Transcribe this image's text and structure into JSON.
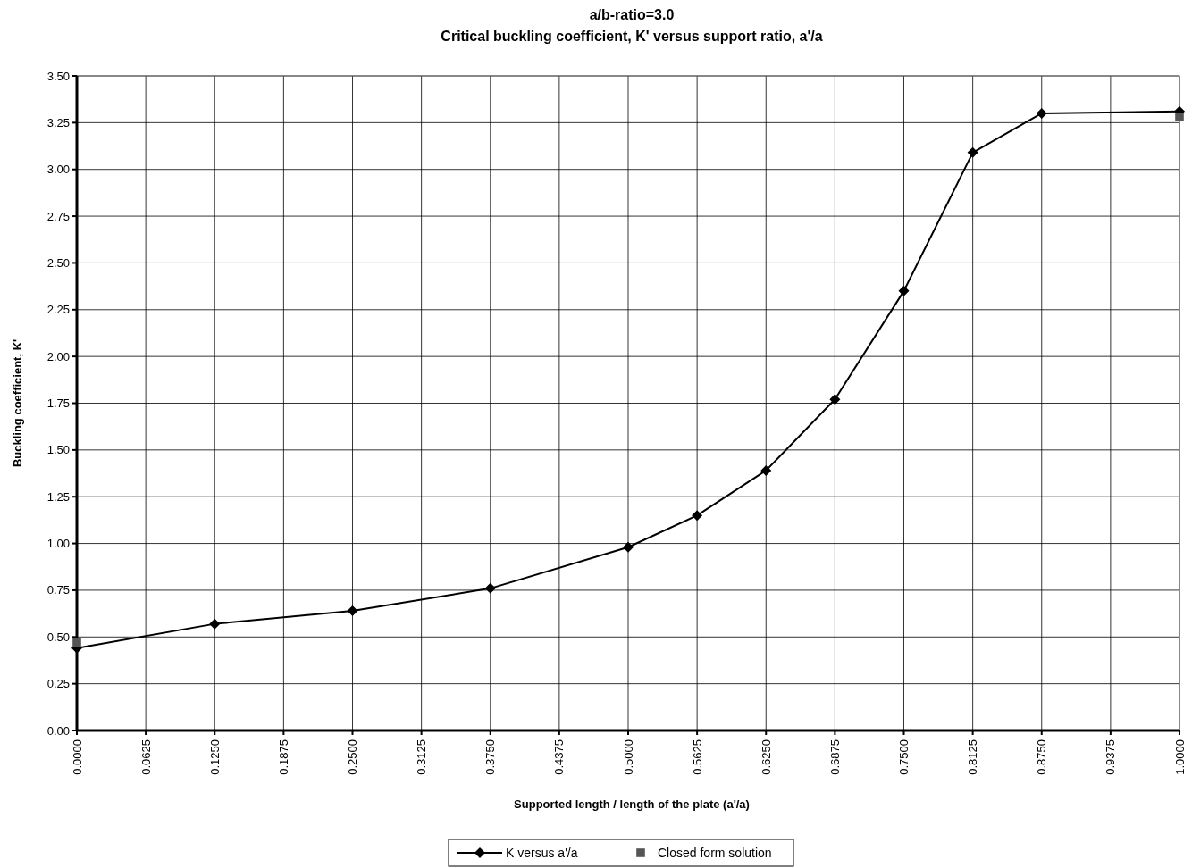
{
  "chart_data": {
    "type": "line",
    "title": "a/b-ratio=3.0",
    "subtitle": "Critical buckling coefficient, K' versus support ratio, a'/a",
    "xlabel": "Supported length / length of the plate (a'/a)",
    "ylabel": "Buckling coefficient, K'",
    "xlim": [
      0,
      1
    ],
    "ylim": [
      0,
      3.5
    ],
    "xticks": [
      {
        "value": 0,
        "label": "0.0000"
      },
      {
        "value": 0.0625,
        "label": "0.0625"
      },
      {
        "value": 0.125,
        "label": "0.1250"
      },
      {
        "value": 0.1875,
        "label": "0.1875"
      },
      {
        "value": 0.25,
        "label": "0.2500"
      },
      {
        "value": 0.3125,
        "label": "0.3125"
      },
      {
        "value": 0.375,
        "label": "0.3750"
      },
      {
        "value": 0.4375,
        "label": "0.4375"
      },
      {
        "value": 0.5,
        "label": "0.5000"
      },
      {
        "value": 0.5625,
        "label": "0.5625"
      },
      {
        "value": 0.625,
        "label": "0.6250"
      },
      {
        "value": 0.6875,
        "label": "0.6875"
      },
      {
        "value": 0.75,
        "label": "0.7500"
      },
      {
        "value": 0.8125,
        "label": "0.8125"
      },
      {
        "value": 0.875,
        "label": "0.8750"
      },
      {
        "value": 0.9375,
        "label": "0.9375"
      },
      {
        "value": 1,
        "label": "1.0000"
      }
    ],
    "yticks": [
      {
        "value": 0,
        "label": "0.00"
      },
      {
        "value": 0.25,
        "label": "0.25"
      },
      {
        "value": 0.5,
        "label": "0.50"
      },
      {
        "value": 0.75,
        "label": "0.75"
      },
      {
        "value": 1,
        "label": "1.00"
      },
      {
        "value": 1.25,
        "label": "1.25"
      },
      {
        "value": 1.5,
        "label": "1.50"
      },
      {
        "value": 1.75,
        "label": "1.75"
      },
      {
        "value": 2,
        "label": "2.00"
      },
      {
        "value": 2.25,
        "label": "2.25"
      },
      {
        "value": 2.5,
        "label": "2.50"
      },
      {
        "value": 2.75,
        "label": "2.75"
      },
      {
        "value": 3,
        "label": "3.00"
      },
      {
        "value": 3.25,
        "label": "3.25"
      },
      {
        "value": 3.5,
        "label": "3.50"
      }
    ],
    "grid": true,
    "legend": "bottom",
    "series": [
      {
        "name": "K versus a'/a",
        "color": "#000000",
        "marker": "diamond",
        "x": [
          0,
          0.125,
          0.25,
          0.375,
          0.5,
          0.5625,
          0.625,
          0.6875,
          0.75,
          0.8125,
          0.875,
          1
        ],
        "values": [
          0.44,
          0.57,
          0.64,
          0.76,
          0.98,
          1.15,
          1.39,
          1.77,
          2.35,
          3.09,
          3.3,
          3.31
        ]
      },
      {
        "name": "Closed form solution",
        "type": "scatter",
        "color": "#555555",
        "marker": "square",
        "x": [
          0,
          1
        ],
        "values": [
          0.47,
          3.28
        ]
      }
    ]
  }
}
